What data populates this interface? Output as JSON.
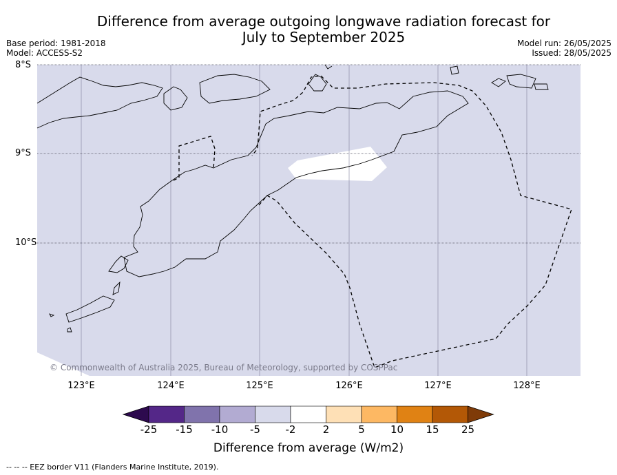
{
  "title_line1": "Difference from average outgoing longwave radiation forecast for",
  "title_line2": "July to September 2025",
  "base_period": "Base period: 1981-2018",
  "model": "Model: ACCESS-S2",
  "model_run": "Model run: 26/05/2025",
  "issued": "Issued: 28/05/2025",
  "lat_labels": [
    "8°S",
    "9°S",
    "10°S"
  ],
  "lon_labels": [
    "123°E",
    "124°E",
    "125°E",
    "126°E",
    "127°E",
    "128°E"
  ],
  "copyright": "© Commonwealth of Australia 2025, Bureau of Meteorology, supported by COSPPac",
  "colorbar": {
    "ticks": [
      "-25",
      "-15",
      "-10",
      "-5",
      "-2",
      "2",
      "5",
      "10",
      "15",
      "25"
    ],
    "colors": [
      "#2d0a4e",
      "#542788",
      "#8073ac",
      "#b2abd2",
      "#d8daeb",
      "#ffffff",
      "#fee0b6",
      "#fdb863",
      "#e08214",
      "#b35806",
      "#7f3b08"
    ],
    "label": "Difference from average (W/m2)"
  },
  "map_fill_color": "#d8daeb",
  "footnote": "--  --  -- EEZ border V11 (Flanders Marine Institute, 2019)."
}
